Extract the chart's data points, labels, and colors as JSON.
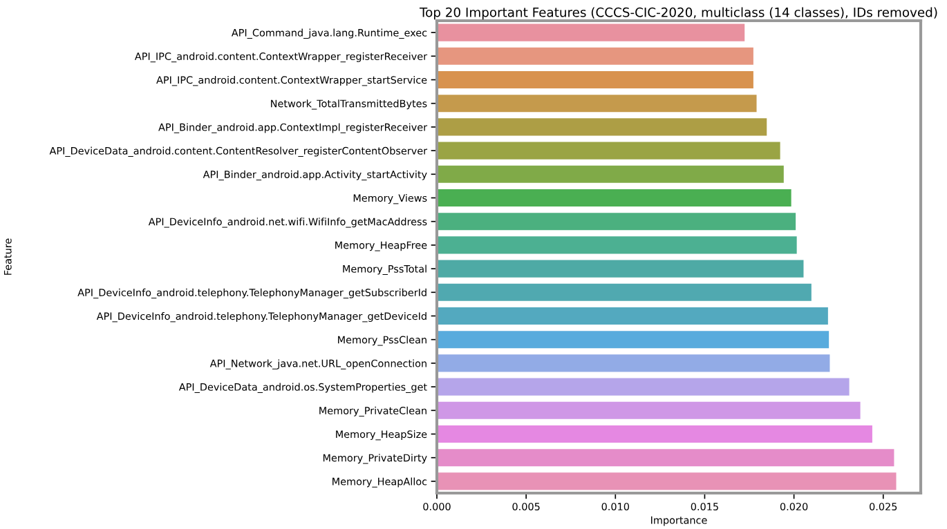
{
  "chart_data": {
    "type": "bar",
    "orientation": "horizontal",
    "title": "Top 20 Important Features (CCCS-CIC-2020, multiclass (14 classes), IDs removed)",
    "xlabel": "Importance",
    "ylabel": "Feature",
    "categories": [
      "API_Command_java.lang.Runtime_exec",
      "API_IPC_android.content.ContextWrapper_registerReceiver",
      "API_IPC_android.content.ContextWrapper_startService",
      "Network_TotalTransmittedBytes",
      "API_Binder_android.app.ContextImpl_registerReceiver",
      "API_DeviceData_android.content.ContentResolver_registerContentObserver",
      "API_Binder_android.app.Activity_startActivity",
      "Memory_Views",
      "API_DeviceInfo_android.net.wifi.WifiInfo_getMacAddress",
      "Memory_HeapFree",
      "Memory_PssTotal",
      "API_DeviceInfo_android.telephony.TelephonyManager_getSubscriberId",
      "API_DeviceInfo_android.telephony.TelephonyManager_getDeviceId",
      "Memory_PssClean",
      "API_Network_java.net.URL_openConnection",
      "API_DeviceData_android.os.SystemProperties_get",
      "Memory_PrivateClean",
      "Memory_HeapSize",
      "Memory_PrivateDirty",
      "Memory_HeapAlloc"
    ],
    "values": [
      0.01728,
      0.01777,
      0.01777,
      0.01795,
      0.01852,
      0.01927,
      0.01947,
      0.01989,
      0.02014,
      0.0202,
      0.02058,
      0.02102,
      0.02195,
      0.022,
      0.02205,
      0.02314,
      0.02376,
      0.02443,
      0.02565,
      0.02577
    ],
    "colors": [
      "#e8919f",
      "#e6967f",
      "#d8924e",
      "#c59a4c",
      "#ad9e45",
      "#9aa444",
      "#80aa48",
      "#4aaf52",
      "#4bb07f",
      "#4cb092",
      "#4eaaa5",
      "#50a9b0",
      "#53a9bf",
      "#58abdd",
      "#92abe6",
      "#b5a5ea",
      "#cf97e6",
      "#e588e2",
      "#e58cc9",
      "#e892b6"
    ],
    "xlim": [
      0,
      0.0271
    ],
    "xticks": [
      {
        "value": 0,
        "label": "0.000"
      },
      {
        "value": 0.005,
        "label": "0.005"
      },
      {
        "value": 0.01,
        "label": "0.010"
      },
      {
        "value": 0.015,
        "label": "0.015"
      },
      {
        "value": 0.02,
        "label": "0.020"
      },
      {
        "value": 0.025,
        "label": "0.025"
      }
    ],
    "grid": false,
    "legend": false
  }
}
